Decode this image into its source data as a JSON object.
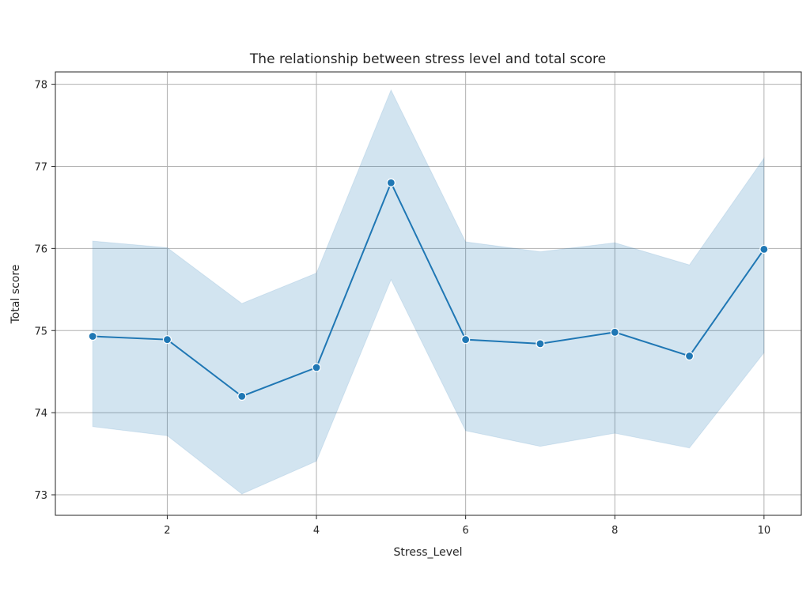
{
  "chart_data": {
    "type": "line",
    "title": "The relationship between stress level and total score",
    "xlabel": "Stress_Level",
    "ylabel": "Total score",
    "xlim": [
      0.5,
      10.5
    ],
    "ylim": [
      72.75,
      78.15
    ],
    "xticks": [
      2,
      4,
      6,
      8,
      10
    ],
    "yticks": [
      73,
      74,
      75,
      76,
      77,
      78
    ],
    "grid": true,
    "x": [
      1,
      2,
      3,
      4,
      5,
      6,
      7,
      8,
      9,
      10
    ],
    "series": [
      {
        "values": [
          74.93,
          74.89,
          74.2,
          74.55,
          76.8,
          74.89,
          74.84,
          74.98,
          74.69,
          75.99
        ],
        "ci_lower": [
          73.83,
          73.72,
          73.01,
          73.41,
          75.62,
          73.78,
          73.59,
          73.75,
          73.57,
          74.73
        ],
        "ci_upper": [
          76.09,
          76.01,
          75.33,
          75.7,
          77.93,
          76.08,
          75.96,
          76.07,
          75.8,
          77.1
        ],
        "color": "#1f77b4",
        "band_color": "#1f77b4"
      }
    ]
  }
}
